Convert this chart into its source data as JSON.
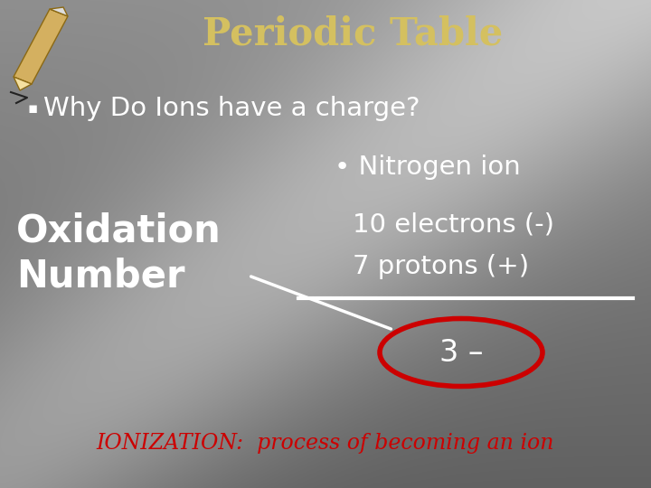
{
  "title": "Periodic Table",
  "title_color": "#D4C060",
  "title_fontsize": 30,
  "title_weight": "bold",
  "bullet_text": "Why Do Ions have a charge?",
  "bullet_fontsize": 21,
  "bullet_color": "#ffffff",
  "bullet_marker": "▪",
  "nitrogen_label": "• Nitrogen ion",
  "nitrogen_fontsize": 21,
  "nitrogen_color": "#ffffff",
  "electrons_text": "10 electrons (-)",
  "electrons_fontsize": 21,
  "electrons_color": "#ffffff",
  "protons_text": "7 protons (+)",
  "protons_fontsize": 21,
  "protons_color": "#ffffff",
  "oxidation_text1": "Oxidation",
  "oxidation_text2": "Number",
  "oxidation_fontsize": 30,
  "oxidation_color": "#ffffff",
  "oxidation_weight": "bold",
  "result_text": "3 –",
  "result_fontsize": 24,
  "result_color": "#ffffff",
  "ionization_text": "IONIZATION:  process of becoming an ion",
  "ionization_fontsize": 17,
  "ionization_color": "#cc0000",
  "line_color": "#ffffff",
  "ellipse_color": "#cc0000",
  "arrow_color": "#ffffff",
  "figsize": [
    7.2,
    5.4
  ],
  "dpi": 100
}
